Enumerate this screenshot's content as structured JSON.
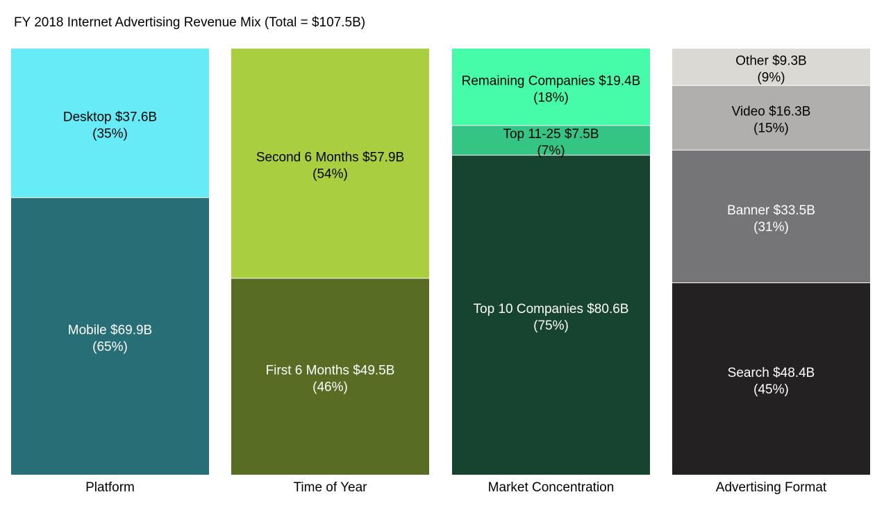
{
  "chart_data": {
    "type": "bar",
    "subtype": "100% stacked (mekko-style) columns",
    "title": "FY 2018 Internet Advertising Revenue Mix (Total = $107.5B)",
    "total": 107.5,
    "unit": "$B",
    "columns": [
      {
        "category": "Platform",
        "segments": [
          {
            "name": "Mobile",
            "value": 69.9,
            "label": "Mobile $69.9B",
            "pct_label": "(65%)",
            "color": "#276e76",
            "text_color": "#ffffff"
          },
          {
            "name": "Desktop",
            "value": 37.6,
            "label": "Desktop $37.6B",
            "pct_label": "(35%)",
            "color": "#66ebf7",
            "text_color": "#000000"
          }
        ]
      },
      {
        "category": "Time of Year",
        "segments": [
          {
            "name": "First 6 Months",
            "value": 49.5,
            "label": "First 6 Months $49.5B",
            "pct_label": "(46%)",
            "color": "#586c23",
            "text_color": "#ffffff"
          },
          {
            "name": "Second 6 Months",
            "value": 57.9,
            "label": "Second 6 Months $57.9B",
            "pct_label": "(54%)",
            "color": "#a9cf40",
            "text_color": "#000000"
          }
        ]
      },
      {
        "category": "Market Concentration",
        "segments": [
          {
            "name": "Top 10 Companies",
            "value": 80.6,
            "label": "Top 10 Companies $80.6B",
            "pct_label": "(75%)",
            "color": "#164430",
            "text_color": "#ffffff"
          },
          {
            "name": "Top 11-25",
            "value": 7.5,
            "label": "Top 11-25 $7.5B",
            "pct_label": "(7%)",
            "color": "#34c585",
            "text_color": "#000000"
          },
          {
            "name": "Remaining Companies",
            "value": 19.4,
            "label": "Remaining Companies $19.4B",
            "pct_label": "(18%)",
            "color": "#46fca8",
            "text_color": "#000000"
          }
        ]
      },
      {
        "category": "Advertising Format",
        "segments": [
          {
            "name": "Search",
            "value": 48.4,
            "label": "Search $48.4B",
            "pct_label": "(45%)",
            "color": "#242122",
            "text_color": "#ffffff"
          },
          {
            "name": "Banner",
            "value": 33.5,
            "label": "Banner $33.5B",
            "pct_label": "(31%)",
            "color": "#757577",
            "text_color": "#ffffff"
          },
          {
            "name": "Video",
            "value": 16.3,
            "label": "Video $16.3B",
            "pct_label": "(15%)",
            "color": "#b0afad",
            "text_color": "#000000"
          },
          {
            "name": "Other",
            "value": 9.3,
            "label": "Other $9.3B",
            "pct_label": "(9%)",
            "color": "#dad9d4",
            "text_color": "#000000"
          }
        ]
      }
    ]
  }
}
